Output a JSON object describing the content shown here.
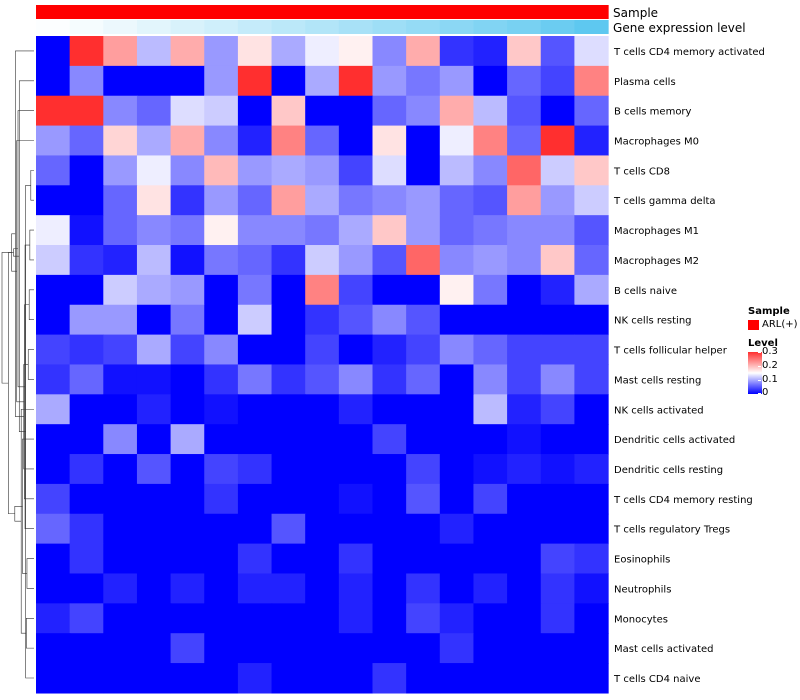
{
  "chart_data": {
    "type": "heatmap",
    "title": "",
    "annotations": [
      {
        "label": "Sample",
        "color": "#ff0000"
      },
      {
        "label": "Gene expression level",
        "colors_low_to_high": [
          "#ffffff",
          "#5ec8f0"
        ]
      }
    ],
    "legend": {
      "sample_title": "Sample",
      "sample_entries": [
        {
          "label": "ARL(+)",
          "color": "#ff0000"
        }
      ],
      "level_title": "Level",
      "level_ticks": [
        {
          "value": 0.3,
          "label": "0.3"
        },
        {
          "value": 0.2,
          "label": "0.2"
        },
        {
          "value": 0.1,
          "label": "0.1"
        },
        {
          "value": 0,
          "label": "0"
        }
      ],
      "range": [
        0,
        0.3
      ],
      "colors": {
        "low": "#0000ff",
        "mid": "#ffffff",
        "high": "#ff2f2f"
      }
    },
    "rows": [
      "T cells CD4 memory activated",
      "Plasma cells",
      "B cells memory",
      "Macrophages M0",
      "T cells CD8",
      "T cells gamma delta",
      "Macrophages M1",
      "Macrophages M2",
      "B cells naive",
      "NK cells resting",
      "T cells follicular helper",
      "Mast cells resting",
      "NK cells activated",
      "Dendritic cells activated",
      "Dendritic cells resting",
      "T cells CD4 memory resting",
      "T cells regulatory  Tregs",
      "Eosinophils",
      "Neutrophils",
      "Monocytes",
      "Mast cells activated",
      "T cells CD4 naive"
    ],
    "values": [
      [
        0.0,
        0.3,
        0.22,
        0.11,
        0.21,
        0.09,
        0.17,
        0.1,
        0.14,
        0.16,
        0.08,
        0.21,
        0.03,
        0.02,
        0.19,
        0.05,
        0.13
      ],
      [
        0.0,
        0.08,
        0.0,
        0.0,
        0.0,
        0.09,
        0.3,
        0.0,
        0.1,
        0.31,
        0.09,
        0.07,
        0.09,
        0.0,
        0.06,
        0.04,
        0.24
      ],
      [
        0.3,
        0.3,
        0.08,
        0.06,
        0.13,
        0.12,
        0.0,
        0.19,
        0.0,
        0.0,
        0.06,
        0.08,
        0.21,
        0.11,
        0.05,
        0.0,
        0.06
      ],
      [
        0.09,
        0.06,
        0.18,
        0.1,
        0.21,
        0.08,
        0.02,
        0.24,
        0.06,
        0.0,
        0.17,
        0.0,
        0.14,
        0.24,
        0.06,
        0.3,
        0.02
      ],
      [
        0.06,
        0.0,
        0.09,
        0.14,
        0.08,
        0.2,
        0.09,
        0.1,
        0.09,
        0.04,
        0.13,
        0.0,
        0.11,
        0.08,
        0.26,
        0.12,
        0.19
      ],
      [
        0.0,
        0.0,
        0.06,
        0.17,
        0.03,
        0.09,
        0.06,
        0.22,
        0.1,
        0.07,
        0.08,
        0.09,
        0.06,
        0.05,
        0.22,
        0.09,
        0.12
      ],
      [
        0.14,
        0.01,
        0.06,
        0.08,
        0.07,
        0.16,
        0.08,
        0.08,
        0.07,
        0.1,
        0.19,
        0.09,
        0.06,
        0.07,
        0.08,
        0.08,
        0.05
      ],
      [
        0.12,
        0.03,
        0.02,
        0.11,
        0.01,
        0.07,
        0.06,
        0.03,
        0.12,
        0.09,
        0.05,
        0.26,
        0.08,
        0.09,
        0.08,
        0.19,
        0.06
      ],
      [
        0.0,
        0.0,
        0.12,
        0.1,
        0.09,
        0.0,
        0.07,
        0.0,
        0.24,
        0.04,
        0.0,
        0.0,
        0.16,
        0.07,
        0.0,
        0.02,
        0.1
      ],
      [
        0.0,
        0.09,
        0.09,
        0.0,
        0.07,
        0.0,
        0.12,
        0.0,
        0.03,
        0.05,
        0.08,
        0.05,
        0.0,
        0.0,
        0.0,
        0.0,
        0.0
      ],
      [
        0.04,
        0.03,
        0.04,
        0.1,
        0.04,
        0.08,
        0.0,
        0.0,
        0.04,
        0.0,
        0.02,
        0.04,
        0.08,
        0.06,
        0.04,
        0.04,
        0.04
      ],
      [
        0.03,
        0.06,
        0.01,
        0.01,
        0.0,
        0.03,
        0.07,
        0.03,
        0.05,
        0.08,
        0.03,
        0.06,
        0.0,
        0.08,
        0.04,
        0.08,
        0.04
      ],
      [
        0.1,
        0.0,
        0.0,
        0.02,
        0.0,
        0.01,
        0.0,
        0.0,
        0.0,
        0.02,
        0.0,
        0.0,
        0.0,
        0.11,
        0.02,
        0.04,
        0.0
      ],
      [
        0.0,
        0.0,
        0.08,
        0.0,
        0.1,
        0.0,
        0.0,
        0.0,
        0.0,
        0.0,
        0.04,
        0.0,
        0.0,
        0.0,
        0.01,
        0.0,
        0.0
      ],
      [
        0.0,
        0.03,
        0.0,
        0.05,
        0.0,
        0.04,
        0.03,
        0.0,
        0.0,
        0.0,
        0.0,
        0.04,
        0.0,
        0.01,
        0.02,
        0.01,
        0.02
      ],
      [
        0.04,
        0.0,
        0.0,
        0.0,
        0.0,
        0.03,
        0.0,
        0.0,
        0.0,
        0.01,
        0.0,
        0.05,
        0.0,
        0.04,
        0.0,
        0.0,
        0.0
      ],
      [
        0.06,
        0.03,
        0.0,
        0.0,
        0.0,
        0.0,
        0.0,
        0.05,
        0.0,
        0.0,
        0.0,
        0.0,
        0.02,
        0.0,
        0.0,
        0.0,
        0.0
      ],
      [
        0.0,
        0.03,
        0.0,
        0.0,
        0.0,
        0.0,
        0.03,
        0.0,
        0.0,
        0.03,
        0.0,
        0.0,
        0.0,
        0.0,
        0.0,
        0.04,
        0.03
      ],
      [
        0.0,
        0.0,
        0.02,
        0.0,
        0.02,
        0.0,
        0.02,
        0.02,
        0.0,
        0.02,
        0.0,
        0.03,
        0.0,
        0.02,
        0.0,
        0.03,
        0.01
      ],
      [
        0.02,
        0.04,
        0.0,
        0.0,
        0.0,
        0.0,
        0.0,
        0.0,
        0.0,
        0.02,
        0.0,
        0.04,
        0.02,
        0.0,
        0.0,
        0.03,
        0.0
      ],
      [
        0.0,
        0.0,
        0.0,
        0.0,
        0.04,
        0.0,
        0.0,
        0.0,
        0.0,
        0.0,
        0.0,
        0.0,
        0.03,
        0.0,
        0.0,
        0.0,
        0.0
      ],
      [
        0.0,
        0.0,
        0.0,
        0.0,
        0.0,
        0.0,
        0.02,
        0.0,
        0.0,
        0.0,
        0.03,
        0.0,
        0.0,
        0.0,
        0.0,
        0.0,
        0.0
      ]
    ],
    "column_annotation": {
      "sample": [
        "ARL(+)",
        "ARL(+)",
        "ARL(+)",
        "ARL(+)",
        "ARL(+)",
        "ARL(+)",
        "ARL(+)",
        "ARL(+)",
        "ARL(+)",
        "ARL(+)",
        "ARL(+)",
        "ARL(+)",
        "ARL(+)",
        "ARL(+)",
        "ARL(+)",
        "ARL(+)",
        "ARL(+)"
      ],
      "gene_expression_level": [
        0.02,
        0.06,
        0.12,
        0.18,
        0.24,
        0.3,
        0.36,
        0.42,
        0.48,
        0.54,
        0.6,
        0.66,
        0.72,
        0.78,
        0.84,
        0.92,
        1.0
      ]
    },
    "row_dendrogram": {
      "merges": [
        [
          5,
          4,
          0.1
        ],
        [
          6,
          7,
          0.13
        ],
        [
          8,
          9,
          0.15
        ],
        [
          10,
          11,
          0.18
        ],
        [
          17,
          18,
          0.22
        ],
        [
          19,
          20,
          0.24
        ],
        [
          21,
          22,
          0.26
        ],
        [
          23,
          16,
          0.28
        ],
        [
          24,
          15,
          0.3
        ],
        [
          25,
          14,
          0.32
        ],
        [
          26,
          13,
          0.36
        ],
        [
          27,
          12,
          0.4
        ],
        [
          28,
          1,
          0.46
        ],
        [
          29,
          2,
          0.5
        ],
        [
          30,
          3,
          0.54
        ],
        [
          31,
          0,
          0.58
        ],
        [
          32,
          33,
          0.6
        ],
        [
          34,
          35,
          0.64
        ],
        [
          36,
          37,
          0.7
        ],
        [
          38,
          39,
          0.8
        ],
        [
          40,
          41,
          1.0
        ]
      ]
    }
  }
}
